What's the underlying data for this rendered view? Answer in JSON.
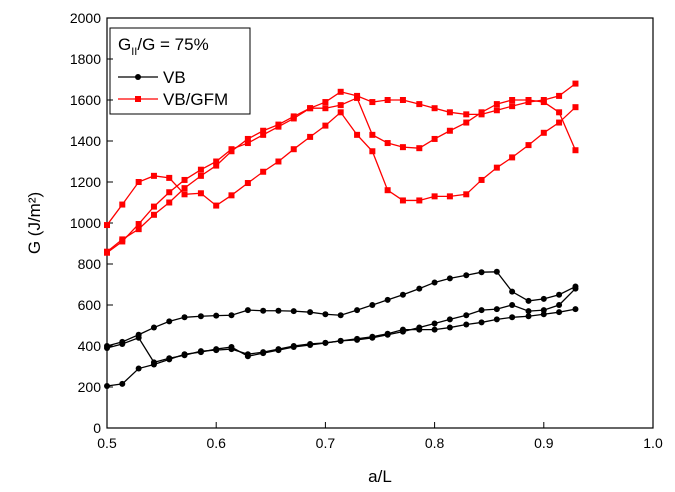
{
  "chart_data": {
    "type": "line",
    "x_label": "a/L",
    "y_label": "G (J/m²)",
    "legend_title": [
      "G",
      "II",
      "/G = 75%"
    ],
    "legend": "upper left",
    "xlim": [
      0.5,
      1
    ],
    "ylim": [
      0,
      2000
    ],
    "xticks": [
      0.5,
      0.6,
      0.7,
      0.8,
      0.9,
      {
        "value": 1,
        "label": "1.0"
      }
    ],
    "yticks": [
      0,
      200,
      400,
      600,
      800,
      1000,
      1200,
      1400,
      1600,
      1800,
      2000
    ],
    "x": [
      0.5,
      0.514,
      0.529,
      0.543,
      0.557,
      0.571,
      0.586,
      0.6,
      0.614,
      0.629,
      0.643,
      0.657,
      0.671,
      0.686,
      0.7,
      0.714,
      0.729,
      0.743,
      0.757,
      0.771,
      0.786,
      0.8,
      0.814,
      0.829,
      0.843,
      0.857,
      0.871,
      0.886,
      0.9,
      0.914,
      0.929
    ],
    "series": [
      {
        "name": "VB",
        "color": "#000000",
        "marker": "circle",
        "curves": [
          [
            400,
            420,
            455,
            490,
            520,
            540,
            545,
            548,
            550,
            575,
            572,
            572,
            570,
            565,
            555,
            550,
            575,
            600,
            625,
            650,
            680,
            710,
            730,
            745,
            760,
            762,
            665,
            620,
            630,
            650,
            690
          ],
          [
            390,
            410,
            440,
            320,
            340,
            355,
            375,
            380,
            385,
            360,
            370,
            385,
            400,
            410,
            415,
            425,
            430,
            440,
            455,
            470,
            490,
            510,
            530,
            550,
            575,
            580,
            600,
            570,
            575,
            600,
            680
          ],
          [
            205,
            215,
            290,
            310,
            335,
            360,
            370,
            385,
            395,
            350,
            365,
            380,
            395,
            405,
            415,
            425,
            435,
            445,
            460,
            480,
            480,
            480,
            490,
            505,
            515,
            530,
            540,
            545,
            555,
            565,
            580
          ]
        ]
      },
      {
        "name": "VB/GFM",
        "color": "#ff0000",
        "marker": "square",
        "curves": [
          [
            990,
            1090,
            1200,
            1230,
            1220,
            1140,
            1145,
            1085,
            1135,
            1195,
            1250,
            1300,
            1360,
            1420,
            1475,
            1540,
            1430,
            1350,
            1160,
            1110,
            1110,
            1130,
            1130,
            1140,
            1210,
            1270,
            1320,
            1380,
            1440,
            1490,
            1565
          ],
          [
            855,
            910,
            995,
            1080,
            1150,
            1210,
            1260,
            1300,
            1360,
            1390,
            1430,
            1470,
            1510,
            1560,
            1590,
            1640,
            1620,
            1590,
            1600,
            1600,
            1580,
            1560,
            1540,
            1530,
            1530,
            1550,
            1570,
            1590,
            1600,
            1620,
            1680
          ],
          [
            860,
            920,
            970,
            1040,
            1100,
            1170,
            1230,
            1280,
            1350,
            1410,
            1450,
            1480,
            1520,
            1560,
            1560,
            1575,
            1610,
            1430,
            1390,
            1370,
            1365,
            1410,
            1450,
            1490,
            1540,
            1580,
            1600,
            1600,
            1590,
            1540,
            1355
          ]
        ]
      }
    ]
  }
}
